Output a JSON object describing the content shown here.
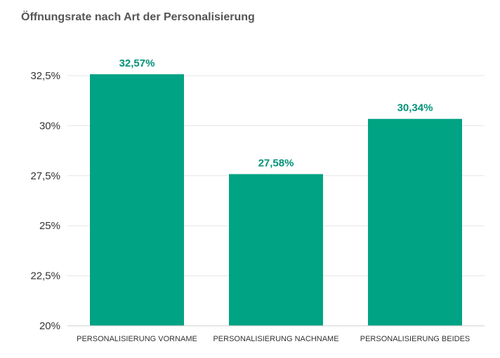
{
  "chart_data": {
    "type": "bar",
    "title": "Öffnungsrate nach Art der Personalisierung",
    "xlabel": "",
    "ylabel": "",
    "categories": [
      "PERSONALISIERUNG VORNAME",
      "PERSONALISIERUNG NACHNAME",
      "PERSONALISIERUNG BEIDES"
    ],
    "values": [
      32.57,
      27.58,
      30.34
    ],
    "data_labels": [
      "32,57%",
      "27,58%",
      "30,34%"
    ],
    "ylim": [
      20,
      32.5
    ],
    "yticks": [
      20,
      22.5,
      25,
      27.5,
      30,
      32.5
    ],
    "ytick_labels": [
      "20%",
      "22,5%",
      "25%",
      "27,5%",
      "30%",
      "32,5%"
    ],
    "grid": true,
    "legend": "none",
    "bar_color": "#00a383",
    "label_color": "#009277"
  }
}
